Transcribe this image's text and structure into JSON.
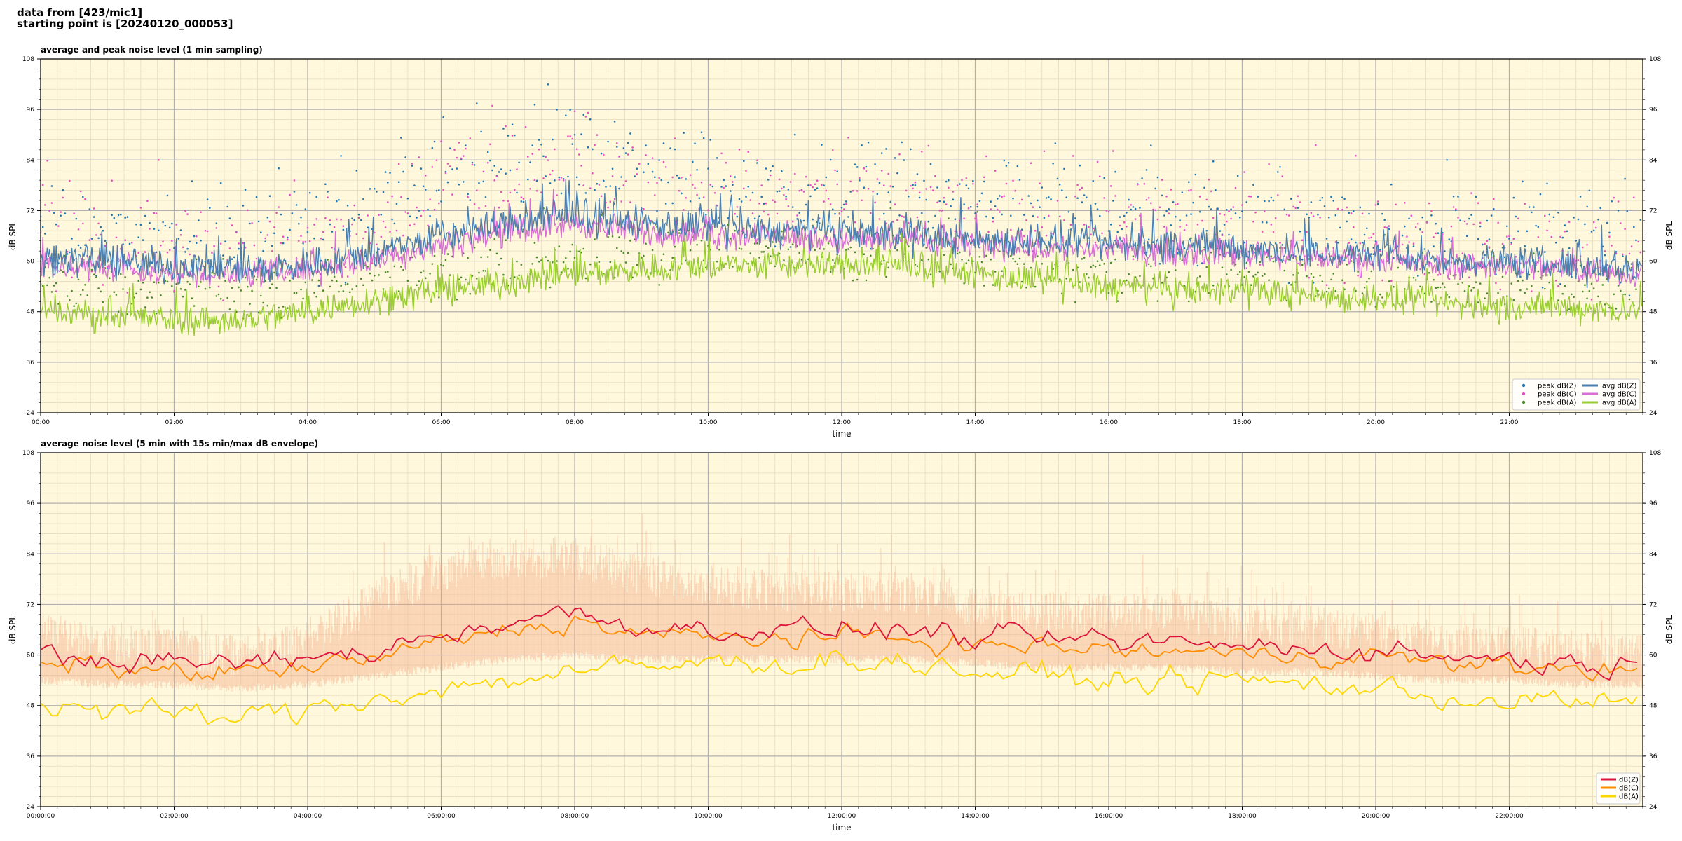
{
  "header": {
    "line1": "data from [423/mic1]",
    "line2": "starting point is [20240120_000053]"
  },
  "colors": {
    "plot_bg": "#fff8dc",
    "grid_major": "#b0b0b0",
    "grid_minor": "#e6dcc0",
    "peak_z": "#1f77b4",
    "peak_c": "#e84fc3",
    "peak_a": "#4a8a2a",
    "avg_z": "#4a7fb0",
    "avg_c": "#d86fd6",
    "avg_a": "#9acd32",
    "db_z": "#dc143c",
    "db_c": "#ff8c00",
    "db_a": "#ffd700",
    "envelope": "#f4a582"
  },
  "chart_data": [
    {
      "type": "line",
      "title": "average and peak noise level (1 min sampling)",
      "xlabel": "time",
      "ylabel": "dB SPL",
      "xlim_hours": [
        0,
        24
      ],
      "ylim": [
        24,
        108
      ],
      "yticks": [
        24,
        36,
        48,
        60,
        72,
        84,
        96,
        108
      ],
      "xticks": [
        "00:00",
        "02:00",
        "04:00",
        "06:00",
        "08:00",
        "10:00",
        "12:00",
        "14:00",
        "16:00",
        "18:00",
        "20:00",
        "22:00"
      ],
      "grid": true,
      "legend_position": "bottom-right",
      "legend": [
        "peak dB(Z)",
        "peak dB(C)",
        "peak dB(A)",
        "avg dB(Z)",
        "avg dB(C)",
        "avg dB(A)"
      ],
      "series": [
        {
          "name": "avg dB(Z)",
          "hours": [
            0,
            1,
            2,
            3,
            4,
            5,
            6,
            7,
            8,
            9,
            10,
            11,
            12,
            13,
            14,
            15,
            16,
            17,
            18,
            19,
            20,
            21,
            22,
            23,
            24
          ],
          "values": [
            61,
            60,
            59,
            58,
            59,
            62,
            66,
            69,
            71,
            69,
            68,
            67,
            67,
            66,
            65,
            65,
            64,
            64,
            63,
            62,
            61,
            60,
            60,
            59,
            58
          ]
        },
        {
          "name": "avg dB(C)",
          "hours": [
            0,
            1,
            2,
            3,
            4,
            5,
            6,
            7,
            8,
            9,
            10,
            11,
            12,
            13,
            14,
            15,
            16,
            17,
            18,
            19,
            20,
            21,
            22,
            23,
            24
          ],
          "values": [
            59,
            58,
            57,
            57,
            58,
            60,
            64,
            67,
            69,
            67,
            66,
            66,
            65,
            65,
            64,
            63,
            63,
            62,
            62,
            61,
            60,
            59,
            59,
            58,
            57
          ]
        },
        {
          "name": "avg dB(A)",
          "hours": [
            0,
            1,
            2,
            3,
            4,
            5,
            6,
            7,
            8,
            9,
            10,
            11,
            12,
            13,
            14,
            15,
            16,
            17,
            18,
            19,
            20,
            21,
            22,
            23,
            24
          ],
          "values": [
            48,
            47,
            46,
            46,
            48,
            51,
            53,
            55,
            57,
            58,
            59,
            59,
            59,
            59,
            57,
            55,
            54,
            53,
            53,
            52,
            51,
            50,
            49,
            49,
            48
          ]
        },
        {
          "name": "peak dB(Z)",
          "hours": [
            0,
            1,
            2,
            3,
            4,
            5,
            6,
            7,
            8,
            9,
            10,
            11,
            12,
            13,
            14,
            15,
            16,
            17,
            18,
            19,
            20,
            21,
            22,
            23,
            24
          ],
          "values": [
            67,
            66,
            65,
            64,
            66,
            72,
            80,
            84,
            84,
            80,
            78,
            77,
            77,
            76,
            74,
            73,
            72,
            72,
            70,
            69,
            68,
            67,
            66,
            65,
            64
          ]
        },
        {
          "name": "peak dB(C)",
          "hours": [
            0,
            1,
            2,
            3,
            4,
            5,
            6,
            7,
            8,
            9,
            10,
            11,
            12,
            13,
            14,
            15,
            16,
            17,
            18,
            19,
            20,
            21,
            22,
            23,
            24
          ],
          "values": [
            65,
            64,
            63,
            62,
            64,
            70,
            78,
            82,
            82,
            78,
            76,
            75,
            75,
            74,
            72,
            71,
            70,
            70,
            68,
            67,
            66,
            65,
            64,
            63,
            62
          ]
        },
        {
          "name": "peak dB(A)",
          "hours": [
            0,
            1,
            2,
            3,
            4,
            5,
            6,
            7,
            8,
            9,
            10,
            11,
            12,
            13,
            14,
            15,
            16,
            17,
            18,
            19,
            20,
            21,
            22,
            23,
            24
          ],
          "values": [
            54,
            53,
            52,
            52,
            53,
            56,
            58,
            60,
            61,
            61,
            62,
            62,
            62,
            62,
            60,
            58,
            57,
            57,
            57,
            56,
            55,
            54,
            54,
            53,
            53
          ]
        }
      ]
    },
    {
      "type": "line",
      "title": "average noise level (5 min with 15s min/max dB envelope)",
      "xlabel": "time",
      "ylabel": "dB SPL",
      "xlim_hours": [
        0,
        24
      ],
      "ylim": [
        24,
        108
      ],
      "yticks": [
        24,
        36,
        48,
        60,
        72,
        84,
        96,
        108
      ],
      "xticks": [
        "00:00:00",
        "02:00:00",
        "04:00:00",
        "06:00:00",
        "08:00:00",
        "10:00:00",
        "12:00:00",
        "14:00:00",
        "16:00:00",
        "18:00:00",
        "20:00:00",
        "22:00:00"
      ],
      "grid": true,
      "legend_position": "bottom-right",
      "legend": [
        "dB(Z)",
        "dB(C)",
        "dB(A)"
      ],
      "series": [
        {
          "name": "dB(Z)",
          "hours": [
            0,
            1,
            2,
            3,
            4,
            5,
            6,
            7,
            8,
            9,
            10,
            11,
            12,
            13,
            14,
            15,
            16,
            17,
            18,
            19,
            20,
            21,
            22,
            23,
            24
          ],
          "values": [
            60,
            59,
            58,
            58,
            59,
            61,
            65,
            68,
            70,
            67,
            66,
            66,
            66,
            66,
            64,
            64,
            63,
            63,
            62,
            62,
            61,
            60,
            59,
            58,
            57
          ]
        },
        {
          "name": "dB(C)",
          "hours": [
            0,
            1,
            2,
            3,
            4,
            5,
            6,
            7,
            8,
            9,
            10,
            11,
            12,
            13,
            14,
            15,
            16,
            17,
            18,
            19,
            20,
            21,
            22,
            23,
            24
          ],
          "values": [
            58,
            57,
            56,
            56,
            57,
            59,
            63,
            66,
            68,
            65,
            64,
            64,
            64,
            64,
            62,
            62,
            61,
            61,
            60,
            60,
            60,
            58,
            57,
            57,
            56
          ]
        },
        {
          "name": "dB(A)",
          "hours": [
            0,
            1,
            2,
            3,
            4,
            5,
            6,
            7,
            8,
            9,
            10,
            11,
            12,
            13,
            14,
            15,
            16,
            17,
            18,
            19,
            20,
            21,
            22,
            23,
            24
          ],
          "values": [
            48,
            47,
            46,
            45,
            47,
            50,
            52,
            54,
            56,
            57,
            58,
            58,
            59,
            58,
            56,
            55,
            54,
            54,
            54,
            53,
            52,
            50,
            49,
            49,
            48
          ]
        },
        {
          "name": "envelope max",
          "hours": [
            0,
            1,
            2,
            3,
            4,
            5,
            6,
            7,
            8,
            9,
            10,
            11,
            12,
            13,
            14,
            15,
            16,
            17,
            18,
            19,
            20,
            21,
            22,
            23,
            24
          ],
          "values": [
            70,
            68,
            66,
            65,
            68,
            78,
            85,
            88,
            88,
            84,
            82,
            80,
            80,
            80,
            76,
            75,
            75,
            76,
            72,
            72,
            70,
            68,
            67,
            66,
            65
          ]
        },
        {
          "name": "envelope min",
          "hours": [
            0,
            1,
            2,
            3,
            4,
            5,
            6,
            7,
            8,
            9,
            10,
            11,
            12,
            13,
            14,
            15,
            16,
            17,
            18,
            19,
            20,
            21,
            22,
            23,
            24
          ],
          "values": [
            55,
            54,
            54,
            53,
            54,
            56,
            58,
            60,
            61,
            60,
            60,
            60,
            60,
            60,
            59,
            58,
            58,
            58,
            57,
            57,
            56,
            55,
            55,
            54,
            54
          ]
        }
      ]
    }
  ]
}
